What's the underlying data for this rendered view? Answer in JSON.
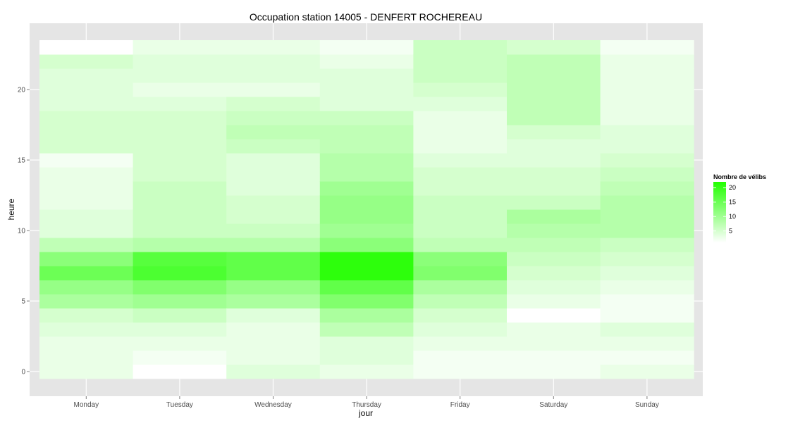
{
  "chart_data": {
    "type": "heatmap",
    "title": "Occupation station 14005 - DENFERT ROCHEREAU",
    "xlabel": "jour",
    "ylabel": "heure",
    "x_categories": [
      "Monday",
      "Tuesday",
      "Wednesday",
      "Thursday",
      "Friday",
      "Saturday",
      "Sunday"
    ],
    "y_ticks": [
      0,
      5,
      10,
      15,
      20
    ],
    "ylim": [
      -0.5,
      23.5
    ],
    "grid": true,
    "legend": {
      "title": "Nombre de vélibs",
      "ticks": [
        5,
        10,
        15,
        20
      ],
      "range": [
        1,
        22
      ],
      "placement": "right",
      "low_color": "#ffffff",
      "high_color": "#22ff00"
    },
    "hours": [
      0,
      1,
      2,
      3,
      4,
      5,
      6,
      7,
      8,
      9,
      10,
      11,
      12,
      13,
      14,
      15,
      16,
      17,
      18,
      19,
      20,
      21,
      22,
      23
    ],
    "series": [
      {
        "day": "Monday",
        "values": [
          3,
          3,
          3,
          4,
          5,
          9,
          11,
          15,
          12,
          7,
          4,
          4,
          3,
          3,
          3,
          2,
          5,
          5,
          5,
          4,
          4,
          4,
          5,
          1
        ]
      },
      {
        "day": "Tuesday",
        "values": [
          1,
          2,
          3,
          4,
          6,
          10,
          13,
          18,
          17,
          8,
          6,
          6,
          6,
          6,
          5,
          5,
          5,
          5,
          5,
          4,
          3,
          4,
          4,
          3
        ]
      },
      {
        "day": "Wednesday",
        "values": [
          4,
          3,
          3,
          3,
          4,
          9,
          11,
          16,
          16,
          8,
          6,
          5,
          5,
          4,
          4,
          4,
          6,
          7,
          6,
          5,
          3,
          4,
          4,
          3
        ]
      },
      {
        "day": "Thursday",
        "values": [
          3,
          4,
          4,
          7,
          9,
          13,
          16,
          21,
          21,
          12,
          10,
          11,
          11,
          10,
          8,
          8,
          7,
          7,
          6,
          4,
          4,
          4,
          3,
          2
        ]
      },
      {
        "day": "Friday",
        "values": [
          2,
          2,
          3,
          4,
          5,
          7,
          9,
          13,
          12,
          7,
          6,
          6,
          6,
          5,
          5,
          4,
          3,
          3,
          3,
          4,
          5,
          6,
          6,
          6
        ]
      },
      {
        "day": "Saturday",
        "values": [
          2,
          2,
          3,
          3,
          1,
          3,
          4,
          5,
          6,
          7,
          8,
          9,
          6,
          5,
          5,
          4,
          4,
          5,
          7,
          7,
          7,
          7,
          7,
          5
        ]
      },
      {
        "day": "Sunday",
        "values": [
          3,
          2,
          3,
          4,
          2,
          2,
          3,
          4,
          5,
          6,
          8,
          8,
          8,
          7,
          6,
          5,
          4,
          4,
          3,
          3,
          3,
          3,
          3,
          2
        ]
      }
    ]
  }
}
